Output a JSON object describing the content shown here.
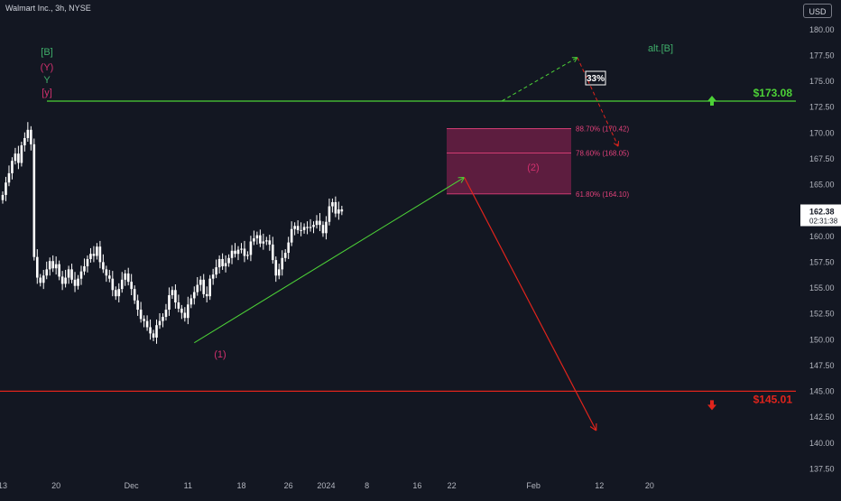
{
  "header": {
    "title": "Walmart Inc., 3h, NYSE",
    "currency_label": "USD"
  },
  "colors": {
    "background": "#131722",
    "axis_text": "#b2b5be",
    "candle": "#ffffff",
    "resistance": "#4cd137",
    "support": "#e0241c",
    "fib_zone": "#6b1f44",
    "fib_text": "#e0407a",
    "wave_green": "#3fae6a",
    "wave_pink": "#d1306e",
    "price_badge_bg": "#ffffff",
    "price_badge_text": "#131722"
  },
  "chart_data": {
    "type": "candlestick",
    "y_ticks": [
      180.0,
      177.5,
      175.0,
      172.5,
      170.0,
      167.5,
      165.0,
      162.5,
      160.0,
      157.5,
      155.0,
      152.5,
      150.0,
      147.5,
      145.0,
      142.5,
      140.0,
      137.5
    ],
    "y_tick_labels": [
      "180.00",
      "177.50",
      "175.00",
      "172.50",
      "170.00",
      "167.50",
      "165.00",
      "162.50",
      "160.00",
      "157.50",
      "155.00",
      "152.50",
      "150.00",
      "147.50",
      "145.00",
      "142.50",
      "140.00",
      "137.50"
    ],
    "ylim": [
      136.0,
      182.0
    ],
    "x_ticks": [
      {
        "label": "13",
        "bar": 0
      },
      {
        "label": "20",
        "bar": 17
      },
      {
        "label": "Dec",
        "bar": 41
      },
      {
        "label": "11",
        "bar": 59
      },
      {
        "label": "18",
        "bar": 76
      },
      {
        "label": "26",
        "bar": 91
      },
      {
        "label": "2024",
        "bar": 103
      },
      {
        "label": "8",
        "bar": 116
      },
      {
        "label": "16",
        "bar": 132
      },
      {
        "label": "22",
        "bar": 143
      },
      {
        "label": "Feb",
        "bar": 169
      },
      {
        "label": "12",
        "bar": 190
      },
      {
        "label": "20",
        "bar": 206
      }
    ],
    "close": [
      164.0,
      165.2,
      166.1,
      167.3,
      168.0,
      167.1,
      168.8,
      169.5,
      170.3,
      168.9,
      158.0,
      156.0,
      155.5,
      156.2,
      156.8,
      157.6,
      156.9,
      157.3,
      156.1,
      155.4,
      156.0,
      156.8,
      155.8,
      155.2,
      155.9,
      156.6,
      157.1,
      157.8,
      158.3,
      158.1,
      159.0,
      157.5,
      156.8,
      156.2,
      155.9,
      154.8,
      154.2,
      154.9,
      155.8,
      156.4,
      155.6,
      154.9,
      153.8,
      152.9,
      152.0,
      151.8,
      151.2,
      150.6,
      150.2,
      151.4,
      151.8,
      152.2,
      152.9,
      154.3,
      154.8,
      153.6,
      153.0,
      152.6,
      152.1,
      153.4,
      154.0,
      154.6,
      155.3,
      155.8,
      154.4,
      154.2,
      155.9,
      156.3,
      157.0,
      157.8,
      157.1,
      157.4,
      157.9,
      158.6,
      158.3,
      158.7,
      158.8,
      158.1,
      158.2,
      159.5,
      159.8,
      160.1,
      159.3,
      159.5,
      159.6,
      159.2,
      157.7,
      156.2,
      156.8,
      157.9,
      158.4,
      159.4,
      160.7,
      161.0,
      160.6,
      160.6,
      160.9,
      160.8,
      160.9,
      161.1,
      161.5,
      161.1,
      160.3,
      161.4,
      162.9,
      163.3,
      162.2,
      162.6,
      162.4
    ],
    "open": [
      163.5,
      164.0,
      165.2,
      166.1,
      167.3,
      168.0,
      167.1,
      168.8,
      169.5,
      170.3,
      168.9,
      158.0,
      156.0,
      155.5,
      156.2,
      156.8,
      157.6,
      156.9,
      157.3,
      156.1,
      155.4,
      156.0,
      156.8,
      155.8,
      155.2,
      155.9,
      156.6,
      157.1,
      157.8,
      158.3,
      158.1,
      159.0,
      157.5,
      156.8,
      156.2,
      155.9,
      154.8,
      154.2,
      154.9,
      155.8,
      156.4,
      155.6,
      154.9,
      153.8,
      152.9,
      152.0,
      151.8,
      151.2,
      150.6,
      150.2,
      151.4,
      151.8,
      152.2,
      152.9,
      154.3,
      154.8,
      153.6,
      153.0,
      152.6,
      152.1,
      153.4,
      154.0,
      154.6,
      155.3,
      155.8,
      154.4,
      154.2,
      155.9,
      156.3,
      157.0,
      157.8,
      157.1,
      157.4,
      157.9,
      158.6,
      158.3,
      158.7,
      158.8,
      158.1,
      158.2,
      159.5,
      159.8,
      160.1,
      159.3,
      159.5,
      159.6,
      159.2,
      157.7,
      156.2,
      156.8,
      157.9,
      158.4,
      159.4,
      160.7,
      161.0,
      160.6,
      160.6,
      160.9,
      160.8,
      160.9,
      161.1,
      161.5,
      161.1,
      160.3,
      161.4,
      162.9,
      163.3,
      162.2,
      162.6
    ],
    "current_price": "162.38",
    "countdown": "02:31:38",
    "levels": [
      {
        "name": "resistance",
        "value": 173.08,
        "label": "$173.08"
      },
      {
        "name": "support",
        "value": 145.01,
        "label": "$145.01"
      }
    ],
    "fib_zone": {
      "top": 170.42,
      "bottom": 164.1,
      "labels": [
        {
          "text": "88.70% (170.42)",
          "value": 170.42
        },
        {
          "text": "78.60% (168.05)",
          "value": 168.05
        },
        {
          "text": "61.80% (164.10)",
          "value": 164.1
        }
      ]
    },
    "wave_labels": [
      {
        "text": "[B]",
        "color": "green"
      },
      {
        "text": "(Y)",
        "color": "pink"
      },
      {
        "text": "Y",
        "color": "green"
      },
      {
        "text": "[y]",
        "color": "pink"
      },
      {
        "text": "(1)",
        "color": "pink"
      },
      {
        "text": "(2)",
        "color": "pink"
      },
      {
        "text": "alt.[B]",
        "color": "green"
      }
    ],
    "probability": "33%",
    "channel": {
      "from_bar": 61,
      "from_value": 149.7,
      "to_bar": 147,
      "to_value": 165.7
    },
    "forecast": {
      "from_bar": 147,
      "from_value": 165.7,
      "to_bar": 189,
      "to_value": 141.2
    },
    "alt_path": {
      "start_bar": 159,
      "start_value": 173.1,
      "peak_bar": 183,
      "peak_value": 177.3,
      "end_bar": 196,
      "end_value": 168.7
    }
  }
}
